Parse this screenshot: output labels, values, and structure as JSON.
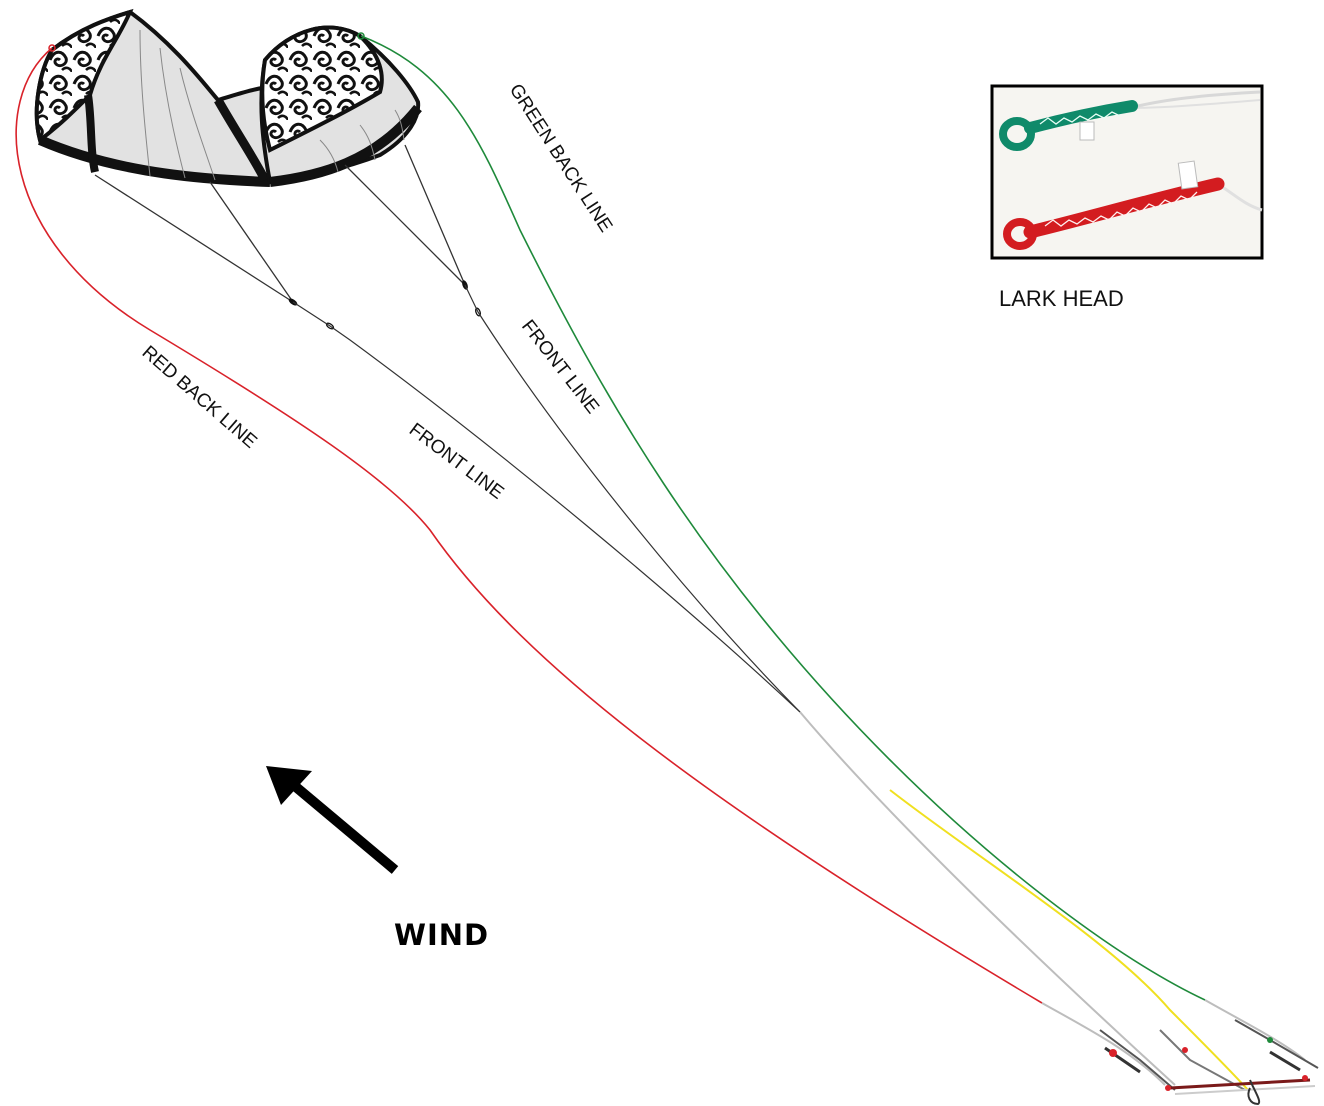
{
  "labels": {
    "green_back_line": "GREEN BACK LINE",
    "front_line_right": "FRONT LINE",
    "front_line_left": "FRONT LINE",
    "red_back_line": "RED BACK LINE",
    "wind": "WIND",
    "lark_head": "LARK HEAD"
  },
  "colors": {
    "red_line": "#d9222a",
    "green_line": "#1f8a3b",
    "front_line": "#333333",
    "yellow_line": "#f0e020",
    "kite_fill": "#e2e2e2",
    "kite_frame": "#111111",
    "inset_border": "#000000"
  },
  "icons": {
    "wind_arrow": "arrow-up-left-icon",
    "kite": "kite-icon",
    "control_bar": "control-bar-icon"
  }
}
